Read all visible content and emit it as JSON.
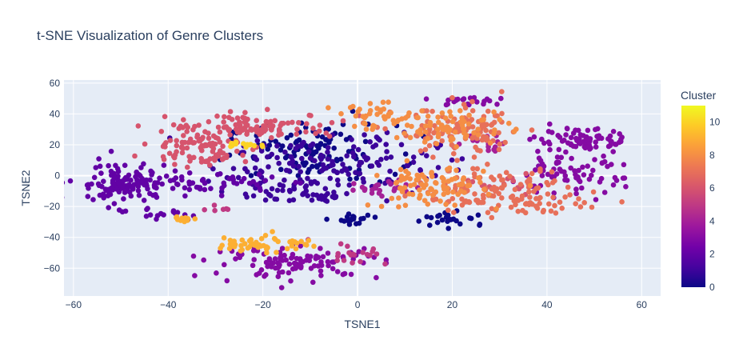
{
  "chart_data": {
    "type": "scatter",
    "title": "t-SNE Visualization of Genre Clusters",
    "xlabel": "TSNE1",
    "ylabel": "TSNE2",
    "xlim": [
      -62,
      64
    ],
    "ylim": [
      -78,
      62
    ],
    "xticks": [
      -60,
      -40,
      -20,
      0,
      20,
      40,
      60
    ],
    "yticks": [
      -60,
      -40,
      -20,
      0,
      20,
      40,
      60
    ],
    "grid": true,
    "colorbar": {
      "title": "Cluster",
      "range": [
        0,
        11
      ],
      "ticks": [
        0,
        2,
        4,
        6,
        8,
        10
      ],
      "colorscale": [
        "#0d0887",
        "#46039f",
        "#7201a8",
        "#9c179e",
        "#bd3786",
        "#d8576b",
        "#ed7953",
        "#fb9f3a",
        "#fdca26",
        "#f0f921"
      ]
    },
    "clusters": [
      {
        "cluster": 0,
        "cx": -10,
        "cy": 15,
        "sx": 9,
        "sy": 9,
        "n": 120
      },
      {
        "cluster": 0,
        "cx": 0,
        "cy": -28,
        "sx": 2,
        "sy": 2,
        "n": 18
      },
      {
        "cluster": 0,
        "cx": 20,
        "cy": -28,
        "sx": 4,
        "sy": 3,
        "n": 25
      },
      {
        "cluster": 1,
        "cx": -7,
        "cy": 8,
        "sx": 12,
        "sy": 10,
        "n": 160
      },
      {
        "cluster": 1,
        "cx": -12,
        "cy": -13,
        "sx": 7,
        "sy": 3,
        "n": 40
      },
      {
        "cluster": 2,
        "cx": -50,
        "cy": -5,
        "sx": 5,
        "sy": 7,
        "n": 120
      },
      {
        "cluster": 2,
        "cx": -33,
        "cy": -5,
        "sx": 8,
        "sy": 3,
        "n": 60
      },
      {
        "cluster": 2,
        "cx": -40,
        "cy": -25,
        "sx": 3,
        "sy": 2,
        "n": 15
      },
      {
        "cluster": 3,
        "cx": 48,
        "cy": 22,
        "sx": 5,
        "sy": 4,
        "n": 80
      },
      {
        "cluster": 3,
        "cx": 44,
        "cy": 0,
        "sx": 6,
        "sy": 6,
        "n": 70
      },
      {
        "cluster": 3,
        "cx": -13,
        "cy": -56,
        "sx": 9,
        "sy": 5,
        "n": 110
      },
      {
        "cluster": 3,
        "cx": 24,
        "cy": 48,
        "sx": 5,
        "sy": 2,
        "n": 25
      },
      {
        "cluster": 4,
        "cx": 6,
        "cy": -8,
        "sx": 4,
        "sy": 3,
        "n": 25
      },
      {
        "cluster": 4,
        "cx": 28,
        "cy": 22,
        "sx": 3,
        "sy": 3,
        "n": 15
      },
      {
        "cluster": 5,
        "cx": -2,
        "cy": -50,
        "sx": 4,
        "sy": 4,
        "n": 20
      },
      {
        "cluster": 5,
        "cx": -28,
        "cy": -22,
        "sx": 2,
        "sy": 1,
        "n": 6
      },
      {
        "cluster": 6,
        "cx": -22,
        "cy": 32,
        "sx": 9,
        "sy": 4,
        "n": 110
      },
      {
        "cluster": 6,
        "cx": -33,
        "cy": 20,
        "sx": 5,
        "sy": 3,
        "n": 50
      },
      {
        "cluster": 6,
        "cx": -32,
        "cy": 11,
        "sx": 5,
        "sy": 2,
        "n": 35
      },
      {
        "cluster": 6,
        "cx": 30,
        "cy": -5,
        "sx": 3,
        "sy": 3,
        "n": 15
      },
      {
        "cluster": 7,
        "cx": 28,
        "cy": -10,
        "sx": 8,
        "sy": 7,
        "n": 110
      },
      {
        "cluster": 7,
        "cx": 38,
        "cy": -18,
        "sx": 5,
        "sy": 3,
        "n": 35
      },
      {
        "cluster": 7,
        "cx": 22,
        "cy": 28,
        "sx": 7,
        "sy": 8,
        "n": 110
      },
      {
        "cluster": 8,
        "cx": 15,
        "cy": -7,
        "sx": 6,
        "sy": 7,
        "n": 90
      },
      {
        "cluster": 8,
        "cx": 5,
        "cy": 38,
        "sx": 5,
        "sy": 4,
        "n": 40
      },
      {
        "cluster": 8,
        "cx": 20,
        "cy": 32,
        "sx": 6,
        "sy": 6,
        "n": 70
      },
      {
        "cluster": 9,
        "cx": -20,
        "cy": -44,
        "sx": 5,
        "sy": 3,
        "n": 55
      },
      {
        "cluster": 9,
        "cx": -37,
        "cy": -28,
        "sx": 2,
        "sy": 1,
        "n": 10
      },
      {
        "cluster": 10,
        "cx": -24,
        "cy": 20,
        "sx": 3,
        "sy": 1,
        "n": 14
      }
    ]
  }
}
